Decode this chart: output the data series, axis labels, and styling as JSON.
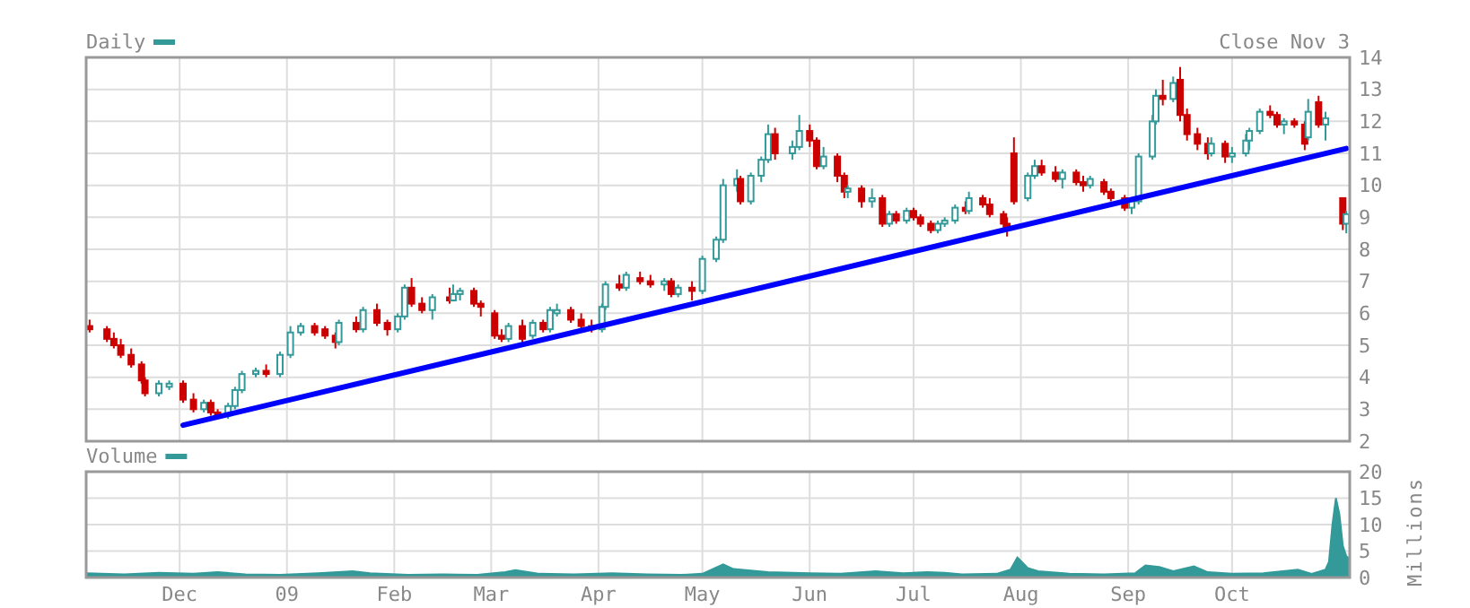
{
  "chart_data": [
    {
      "type": "candlestick",
      "xlim": [
        "2008-11-04",
        "2009-11-04"
      ],
      "xticks": [
        {
          "value": "2008-12-01",
          "label": null
        },
        {
          "value": "2009-01-01",
          "label": null
        },
        {
          "value": "2009-02-01",
          "label": null
        },
        {
          "value": "2009-03-01",
          "label": null
        },
        {
          "value": "2009-04-01",
          "label": null
        },
        {
          "value": "2009-05-01",
          "label": null
        },
        {
          "value": "2009-06-01",
          "label": null
        },
        {
          "value": "2009-07-01",
          "label": null
        },
        {
          "value": "2009-08-01",
          "label": null
        },
        {
          "value": "2009-09-01",
          "label": null
        },
        {
          "value": "2009-10-01",
          "label": null
        }
      ],
      "ylim": [
        2,
        14
      ],
      "yticks": [
        2,
        3,
        4,
        5,
        6,
        7,
        8,
        9,
        10,
        11,
        12,
        13,
        14
      ],
      "grid": true,
      "tick_labels": "y",
      "legend": "top left",
      "annotations": [
        "Close Nov 3"
      ],
      "series": [
        {
          "name": "Daily",
          "color": "#339999",
          "colors": [
            "#cc0000",
            "#cc0000",
            "#cc0000",
            "#cc0000",
            "#cc0000",
            "#cc0000",
            "#cc0000",
            "#339999",
            "#339999",
            "#cc0000",
            "#cc0000",
            "#339999",
            "#cc0000",
            "#cc0000",
            "#339999",
            "#339999",
            "#339999",
            "#339999",
            "#cc0000",
            "#339999",
            "#339999",
            "#339999",
            "#cc0000",
            "#cc0000",
            "#cc0000",
            "#339999",
            "#cc0000",
            "#339999",
            "#cc0000",
            "#cc0000",
            "#339999",
            "#339999",
            "#cc0000",
            "#cc0000",
            "#339999",
            "#cc0000",
            "#339999",
            "#339999",
            "#cc0000",
            "#cc0000",
            "#cc0000",
            "#cc0000",
            "#339999",
            "#cc0000",
            "#339999",
            "#cc0000",
            "#339999",
            "#339999",
            "#cc0000",
            "#cc0000",
            "#cc0000",
            "#339999",
            "#339999",
            "#cc0000",
            "#339999",
            "#cc0000",
            "#cc0000",
            "#339999",
            "#cc0000",
            "#339999",
            "#cc0000",
            "#339999",
            "#339999",
            "#339999",
            "#339999",
            "#cc0000",
            "#339999",
            "#339999",
            "#339999",
            "#cc0000",
            "#339999",
            "#339999",
            "#cc0000",
            "#cc0000",
            "#339999",
            "#cc0000",
            "#cc0000",
            "#339999",
            "#cc0000",
            "#339999",
            "#cc0000",
            "#339999",
            "#cc0000",
            "#339999",
            "#cc0000",
            "#cc0000",
            "#cc0000",
            "#339999",
            "#339999",
            "#339999",
            "#cc0000",
            "#339999",
            "#cc0000",
            "#cc0000",
            "#cc0000",
            "#cc0000",
            "#cc0000",
            "#339999",
            "#339999",
            "#cc0000",
            "#cc0000",
            "#339999",
            "#cc0000",
            "#cc0000",
            "#339999",
            "#cc0000",
            "#cc0000",
            "#cc0000",
            "#339999",
            "#339999",
            "#339999",
            "#339999",
            "#cc0000",
            "#339999",
            "#cc0000",
            "#cc0000",
            "#cc0000",
            "#cc0000",
            "#339999",
            "#cc0000",
            "#339999",
            "#339999",
            "#339999",
            "#339999",
            "#cc0000",
            "#cc0000",
            "#339999",
            "#cc0000",
            "#cc0000",
            "#339999",
            "#cc0000",
            "#339999",
            "#cc0000",
            "#339999"
          ],
          "x": [
            "2008-11-05",
            "2008-11-10",
            "2008-11-12",
            "2008-11-14",
            "2008-11-17",
            "2008-11-20",
            "2008-11-21",
            "2008-11-25",
            "2008-11-28",
            "2008-12-02",
            "2008-12-05",
            "2008-12-08",
            "2008-12-10",
            "2008-12-12",
            "2008-12-15",
            "2008-12-17",
            "2008-12-19",
            "2008-12-23",
            "2008-12-26",
            "2008-12-30",
            "2009-01-02",
            "2009-01-05",
            "2009-01-09",
            "2009-01-12",
            "2009-01-15",
            "2009-01-16",
            "2009-01-21",
            "2009-01-23",
            "2009-01-27",
            "2009-01-30",
            "2009-02-02",
            "2009-02-04",
            "2009-02-06",
            "2009-02-09",
            "2009-02-12",
            "2009-02-17",
            "2009-02-18",
            "2009-02-20",
            "2009-02-24",
            "2009-02-26",
            "2009-03-02",
            "2009-03-04",
            "2009-03-06",
            "2009-03-10",
            "2009-03-13",
            "2009-03-16",
            "2009-03-18",
            "2009-03-20",
            "2009-03-24",
            "2009-03-27",
            "2009-03-30",
            "2009-04-02",
            "2009-04-03",
            "2009-04-07",
            "2009-04-09",
            "2009-04-13",
            "2009-04-16",
            "2009-04-20",
            "2009-04-22",
            "2009-04-24",
            "2009-04-28",
            "2009-05-01",
            "2009-05-05",
            "2009-05-07",
            "2009-05-11",
            "2009-05-12",
            "2009-05-15",
            "2009-05-18",
            "2009-05-20",
            "2009-05-22",
            "2009-05-27",
            "2009-05-29",
            "2009-06-01",
            "2009-06-03",
            "2009-06-05",
            "2009-06-09",
            "2009-06-11",
            "2009-06-12",
            "2009-06-16",
            "2009-06-19",
            "2009-06-22",
            "2009-06-24",
            "2009-06-26",
            "2009-06-29",
            "2009-07-01",
            "2009-07-03",
            "2009-07-06",
            "2009-07-08",
            "2009-07-10",
            "2009-07-13",
            "2009-07-16",
            "2009-07-17",
            "2009-07-21",
            "2009-07-23",
            "2009-07-27",
            "2009-07-28",
            "2009-07-30",
            "2009-08-03",
            "2009-08-05",
            "2009-08-07",
            "2009-08-11",
            "2009-08-13",
            "2009-08-17",
            "2009-08-19",
            "2009-08-21",
            "2009-08-25",
            "2009-08-27",
            "2009-08-31",
            "2009-09-02",
            "2009-09-04",
            "2009-09-08",
            "2009-09-09",
            "2009-09-11",
            "2009-09-14",
            "2009-09-16",
            "2009-09-18",
            "2009-09-21",
            "2009-09-24",
            "2009-09-25",
            "2009-09-29",
            "2009-10-01",
            "2009-10-05",
            "2009-10-06",
            "2009-10-09",
            "2009-10-12",
            "2009-10-14",
            "2009-10-16",
            "2009-10-19",
            "2009-10-22",
            "2009-10-23",
            "2009-10-26",
            "2009-10-28",
            "2009-11-02",
            "2009-11-03"
          ],
          "ohlc": [
            [
              5.6,
              5.8,
              5.4,
              5.5
            ],
            [
              5.5,
              5.6,
              5.1,
              5.2
            ],
            [
              5.2,
              5.4,
              4.9,
              5.0
            ],
            [
              5.0,
              5.2,
              4.6,
              4.7
            ],
            [
              4.7,
              4.9,
              4.3,
              4.4
            ],
            [
              4.4,
              4.5,
              3.8,
              3.9
            ],
            [
              3.9,
              4.0,
              3.4,
              3.5
            ],
            [
              3.5,
              3.9,
              3.4,
              3.8
            ],
            [
              3.7,
              3.9,
              3.6,
              3.8
            ],
            [
              3.8,
              3.9,
              3.2,
              3.3
            ],
            [
              3.3,
              3.5,
              2.9,
              3.0
            ],
            [
              3.0,
              3.3,
              2.9,
              3.2
            ],
            [
              3.2,
              3.3,
              2.8,
              2.9
            ],
            [
              2.9,
              3.0,
              2.7,
              2.8
            ],
            [
              2.8,
              3.2,
              2.7,
              3.1
            ],
            [
              3.1,
              3.7,
              3.0,
              3.6
            ],
            [
              3.6,
              4.2,
              3.5,
              4.1
            ],
            [
              4.1,
              4.3,
              4.0,
              4.2
            ],
            [
              4.2,
              4.4,
              4.0,
              4.1
            ],
            [
              4.1,
              4.8,
              4.0,
              4.7
            ],
            [
              4.7,
              5.6,
              4.6,
              5.4
            ],
            [
              5.4,
              5.7,
              5.3,
              5.6
            ],
            [
              5.6,
              5.7,
              5.3,
              5.4
            ],
            [
              5.5,
              5.6,
              5.2,
              5.3
            ],
            [
              5.3,
              5.4,
              4.9,
              5.1
            ],
            [
              5.1,
              5.8,
              5.0,
              5.7
            ],
            [
              5.7,
              5.9,
              5.4,
              5.5
            ],
            [
              5.5,
              6.2,
              5.4,
              6.1
            ],
            [
              6.1,
              6.3,
              5.6,
              5.7
            ],
            [
              5.7,
              5.8,
              5.3,
              5.5
            ],
            [
              5.5,
              6.0,
              5.4,
              5.9
            ],
            [
              5.9,
              6.9,
              5.8,
              6.8
            ],
            [
              6.8,
              7.1,
              6.2,
              6.3
            ],
            [
              6.3,
              6.5,
              6.0,
              6.1
            ],
            [
              6.1,
              6.6,
              5.8,
              6.5
            ],
            [
              6.5,
              6.8,
              6.3,
              6.4
            ],
            [
              6.4,
              6.9,
              6.4,
              6.6
            ],
            [
              6.6,
              6.8,
              6.4,
              6.7
            ],
            [
              6.7,
              6.8,
              6.2,
              6.3
            ],
            [
              6.3,
              6.4,
              5.9,
              6.2
            ],
            [
              6.0,
              6.1,
              5.2,
              5.3
            ],
            [
              5.3,
              5.5,
              5.1,
              5.2
            ],
            [
              5.2,
              5.7,
              5.1,
              5.6
            ],
            [
              5.6,
              5.8,
              5.1,
              5.2
            ],
            [
              5.3,
              5.8,
              5.2,
              5.7
            ],
            [
              5.7,
              5.8,
              5.4,
              5.5
            ],
            [
              5.5,
              6.2,
              5.4,
              6.1
            ],
            [
              6.0,
              6.3,
              5.9,
              6.1
            ],
            [
              6.1,
              6.2,
              5.7,
              5.8
            ],
            [
              5.8,
              6.0,
              5.5,
              5.6
            ],
            [
              5.6,
              5.8,
              5.4,
              5.5
            ],
            [
              5.5,
              6.3,
              5.4,
              6.2
            ],
            [
              6.2,
              7.0,
              6.1,
              6.9
            ],
            [
              6.9,
              7.2,
              6.7,
              6.8
            ],
            [
              6.8,
              7.3,
              6.7,
              7.2
            ],
            [
              7.1,
              7.3,
              6.9,
              7.0
            ],
            [
              7.0,
              7.2,
              6.8,
              6.9
            ],
            [
              6.9,
              7.1,
              6.7,
              7.0
            ],
            [
              7.0,
              7.1,
              6.5,
              6.6
            ],
            [
              6.6,
              6.9,
              6.5,
              6.8
            ],
            [
              6.8,
              7.0,
              6.4,
              6.7
            ],
            [
              6.7,
              7.8,
              6.6,
              7.7
            ],
            [
              7.7,
              8.4,
              7.6,
              8.3
            ],
            [
              8.3,
              10.2,
              8.2,
              10.0
            ],
            [
              10.0,
              10.5,
              9.8,
              10.2
            ],
            [
              10.2,
              10.3,
              9.4,
              9.5
            ],
            [
              9.5,
              10.4,
              9.4,
              10.3
            ],
            [
              10.3,
              10.9,
              10.1,
              10.8
            ],
            [
              10.8,
              11.9,
              10.7,
              11.6
            ],
            [
              11.6,
              11.8,
              10.8,
              11.0
            ],
            [
              11.0,
              11.4,
              10.8,
              11.2
            ],
            [
              11.2,
              12.2,
              11.1,
              11.7
            ],
            [
              11.7,
              11.9,
              11.2,
              11.4
            ],
            [
              11.4,
              11.5,
              10.5,
              10.6
            ],
            [
              10.6,
              11.2,
              10.5,
              10.9
            ],
            [
              10.9,
              11.0,
              10.1,
              10.3
            ],
            [
              10.3,
              10.4,
              9.6,
              9.8
            ],
            [
              9.8,
              10.0,
              9.6,
              9.9
            ],
            [
              9.9,
              10.0,
              9.3,
              9.5
            ],
            [
              9.5,
              9.9,
              9.3,
              9.6
            ],
            [
              9.6,
              9.7,
              8.7,
              8.8
            ],
            [
              8.8,
              9.2,
              8.7,
              9.1
            ],
            [
              9.1,
              9.2,
              8.8,
              8.9
            ],
            [
              8.9,
              9.3,
              8.8,
              9.2
            ],
            [
              9.2,
              9.3,
              8.9,
              9.0
            ],
            [
              9.0,
              9.1,
              8.7,
              8.8
            ],
            [
              8.8,
              8.9,
              8.5,
              8.6
            ],
            [
              8.6,
              8.9,
              8.5,
              8.8
            ],
            [
              8.8,
              9.0,
              8.7,
              8.9
            ],
            [
              8.9,
              9.4,
              8.8,
              9.3
            ],
            [
              9.3,
              9.5,
              9.1,
              9.2
            ],
            [
              9.2,
              9.8,
              9.1,
              9.6
            ],
            [
              9.6,
              9.7,
              9.3,
              9.4
            ],
            [
              9.4,
              9.6,
              9.0,
              9.1
            ],
            [
              9.1,
              9.2,
              8.6,
              8.8
            ],
            [
              8.8,
              9.0,
              8.4,
              8.7
            ],
            [
              11.0,
              11.5,
              9.4,
              9.5
            ],
            [
              9.6,
              10.4,
              9.5,
              10.3
            ],
            [
              10.3,
              10.8,
              10.2,
              10.6
            ],
            [
              10.6,
              10.8,
              10.3,
              10.4
            ],
            [
              10.4,
              10.6,
              10.1,
              10.2
            ],
            [
              10.2,
              10.5,
              9.9,
              10.4
            ],
            [
              10.4,
              10.5,
              10.0,
              10.1
            ],
            [
              10.1,
              10.3,
              9.8,
              10.0
            ],
            [
              10.0,
              10.3,
              9.9,
              10.2
            ],
            [
              10.1,
              10.2,
              9.7,
              9.8
            ],
            [
              9.8,
              9.9,
              9.5,
              9.6
            ],
            [
              9.6,
              9.7,
              9.2,
              9.3
            ],
            [
              9.3,
              9.6,
              9.1,
              9.5
            ],
            [
              9.5,
              11.0,
              9.4,
              10.9
            ],
            [
              10.9,
              12.2,
              10.8,
              12.0
            ],
            [
              12.0,
              13.0,
              11.9,
              12.8
            ],
            [
              12.8,
              13.3,
              12.5,
              12.7
            ],
            [
              12.7,
              13.4,
              12.6,
              13.2
            ],
            [
              13.3,
              13.7,
              12.0,
              12.2
            ],
            [
              12.2,
              12.4,
              11.4,
              11.6
            ],
            [
              11.6,
              11.8,
              11.1,
              11.3
            ],
            [
              11.3,
              11.5,
              10.8,
              11.0
            ],
            [
              11.0,
              11.5,
              10.9,
              11.3
            ],
            [
              11.3,
              11.4,
              10.7,
              10.9
            ],
            [
              10.9,
              11.2,
              10.7,
              11.0
            ],
            [
              11.0,
              11.6,
              10.9,
              11.4
            ],
            [
              11.4,
              11.8,
              11.1,
              11.7
            ],
            [
              11.7,
              12.4,
              11.6,
              12.3
            ],
            [
              12.3,
              12.5,
              12.1,
              12.2
            ],
            [
              12.2,
              12.3,
              11.8,
              11.9
            ],
            [
              11.9,
              12.1,
              11.6,
              12.0
            ],
            [
              12.0,
              12.1,
              11.8,
              11.9
            ],
            [
              11.9,
              12.0,
              11.1,
              11.3
            ],
            [
              11.5,
              12.7,
              11.4,
              12.3
            ],
            [
              12.6,
              12.8,
              11.8,
              11.9
            ],
            [
              11.9,
              12.3,
              11.4,
              12.1
            ],
            [
              9.6,
              9.6,
              8.6,
              8.8
            ],
            [
              8.8,
              9.2,
              8.5,
              9.1
            ]
          ]
        },
        {
          "type": "line",
          "color": "#0000ff",
          "x": [
            "2008-12-02",
            "2009-11-03"
          ],
          "values": [
            2.5,
            11.15
          ]
        }
      ]
    },
    {
      "type": "area",
      "xlim": [
        "2008-11-04",
        "2009-11-04"
      ],
      "xticks": [
        {
          "value": "2008-12-01",
          "label": "Dec"
        },
        {
          "value": "2009-01-01",
          "label": "09"
        },
        {
          "value": "2009-02-01",
          "label": "Feb"
        },
        {
          "value": "2009-03-01",
          "label": "Mar"
        },
        {
          "value": "2009-04-01",
          "label": "Apr"
        },
        {
          "value": "2009-05-01",
          "label": "May"
        },
        {
          "value": "2009-06-01",
          "label": "Jun"
        },
        {
          "value": "2009-07-01",
          "label": "Jul"
        },
        {
          "value": "2009-08-01",
          "label": "Aug"
        },
        {
          "value": "2009-09-01",
          "label": "Sep"
        },
        {
          "value": "2009-10-01",
          "label": "Oct"
        }
      ],
      "ylim": [
        0,
        20
      ],
      "yticks": [
        0,
        5,
        10,
        15,
        20
      ],
      "ylabel": "Millions",
      "grid": true,
      "legend": "top left",
      "series": [
        {
          "name": "Volume",
          "color": "#339999",
          "x": [
            "2008-11-04",
            "2008-11-15",
            "2008-11-25",
            "2008-12-05",
            "2008-12-12",
            "2008-12-20",
            "2008-12-30",
            "2009-01-10",
            "2009-01-20",
            "2009-01-25",
            "2009-02-05",
            "2009-02-15",
            "2009-02-25",
            "2009-03-05",
            "2009-03-08",
            "2009-03-15",
            "2009-03-25",
            "2009-04-05",
            "2009-04-15",
            "2009-04-25",
            "2009-05-01",
            "2009-05-07",
            "2009-05-10",
            "2009-05-20",
            "2009-06-01",
            "2009-06-10",
            "2009-06-20",
            "2009-06-28",
            "2009-07-05",
            "2009-07-10",
            "2009-07-15",
            "2009-07-25",
            "2009-07-29",
            "2009-07-31",
            "2009-08-03",
            "2009-08-06",
            "2009-08-15",
            "2009-08-25",
            "2009-09-03",
            "2009-09-06",
            "2009-09-10",
            "2009-09-14",
            "2009-09-20",
            "2009-09-24",
            "2009-10-01",
            "2009-10-10",
            "2009-10-20",
            "2009-10-24",
            "2009-10-28",
            "2009-10-29",
            "2009-10-30",
            "2009-10-31",
            "2009-11-01",
            "2009-11-02",
            "2009-11-03",
            "2009-11-04"
          ],
          "values": [
            0.8,
            0.6,
            0.9,
            0.7,
            1.0,
            0.6,
            0.5,
            0.8,
            1.2,
            0.8,
            0.5,
            0.6,
            0.5,
            1.0,
            1.4,
            0.7,
            0.6,
            0.8,
            0.6,
            0.5,
            0.7,
            2.5,
            1.6,
            1.0,
            0.8,
            0.7,
            1.2,
            0.8,
            1.0,
            0.9,
            0.6,
            0.7,
            1.5,
            3.8,
            1.8,
            1.2,
            0.7,
            0.6,
            0.8,
            2.3,
            2.0,
            1.2,
            2.1,
            1.0,
            0.7,
            0.8,
            1.5,
            0.7,
            1.5,
            3,
            10,
            15,
            12,
            6,
            4,
            3.5
          ]
        }
      ]
    }
  ]
}
